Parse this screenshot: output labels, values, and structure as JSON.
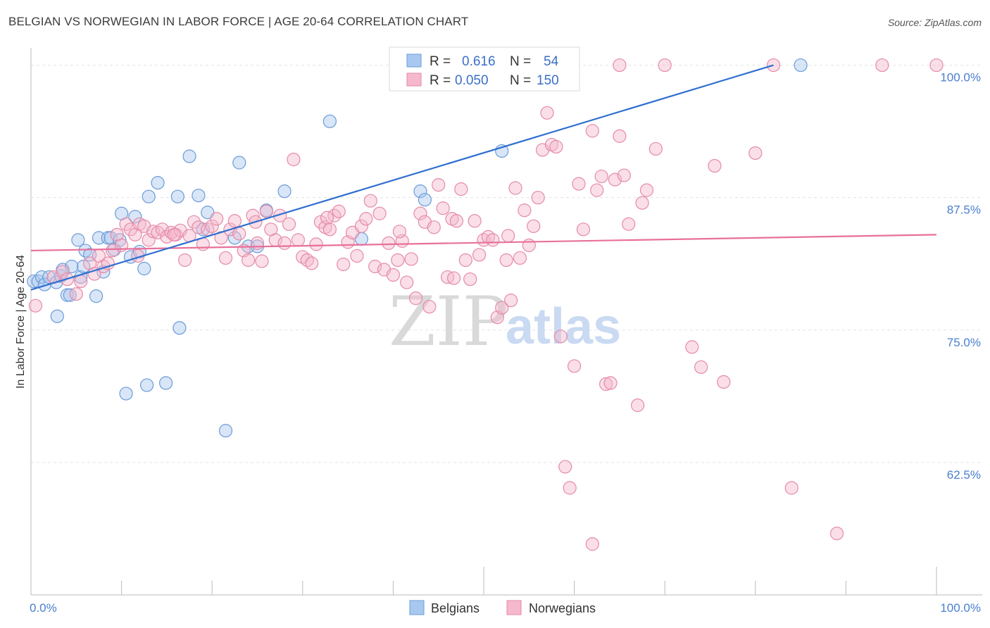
{
  "title": "BELGIAN VS NORWEGIAN IN LABOR FORCE | AGE 20-64 CORRELATION CHART",
  "source": "Source: ZipAtlas.com",
  "watermark": {
    "zip": "ZIP",
    "atlas": "atlas"
  },
  "colors": {
    "belgian_fill": "#a9c8f0",
    "belgian_stroke": "#6b9bd8",
    "belgian_line": "#2f6fd0",
    "norwegian_fill": "#f5b8cc",
    "norwegian_stroke": "#e58aa8",
    "norwegian_line": "#e8709a",
    "tick_text": "#4a7fd0",
    "grid": "#e3e3e3"
  },
  "legend": {
    "rows": [
      {
        "r_label": "R =",
        "r_value": "0.616",
        "n_label": "N =",
        "n_value": "54"
      },
      {
        "r_label": "R =",
        "r_value": "0.050",
        "n_label": "N =",
        "n_value": "150"
      }
    ]
  },
  "bottom_legend": [
    "Belgians",
    "Norwegians"
  ],
  "chart_data": {
    "type": "scatter",
    "xlabel": "",
    "ylabel": "In Labor Force | Age 20-64",
    "xlim": [
      0,
      100
    ],
    "ylim": [
      50,
      101.5
    ],
    "x_tick_labels": [
      "0.0%",
      "100.0%"
    ],
    "y_ticks": [
      62.5,
      75.0,
      87.5,
      100.0
    ],
    "y_tick_labels": [
      "62.5%",
      "75.0%",
      "87.5%",
      "100.0%"
    ],
    "grid": true,
    "legend_placement": "top-center",
    "series": [
      {
        "name": "Belgians",
        "r": 0.616,
        "n": 54,
        "trend": {
          "x": [
            0,
            82
          ],
          "y": [
            78.8,
            100.0
          ]
        },
        "points": [
          [
            0.3,
            79.6
          ],
          [
            0.8,
            79.6
          ],
          [
            1.2,
            80.0
          ],
          [
            1.5,
            79.3
          ],
          [
            2.0,
            80.0
          ],
          [
            2.8,
            79.5
          ],
          [
            3.3,
            80.1
          ],
          [
            2.9,
            76.3
          ],
          [
            3.5,
            80.7
          ],
          [
            4.0,
            78.3
          ],
          [
            4.3,
            78.3
          ],
          [
            4.5,
            81.0
          ],
          [
            5.5,
            80.0
          ],
          [
            5.8,
            81.0
          ],
          [
            5.2,
            83.5
          ],
          [
            6.0,
            82.5
          ],
          [
            6.5,
            82.1
          ],
          [
            7.2,
            78.2
          ],
          [
            7.5,
            83.7
          ],
          [
            8.0,
            80.5
          ],
          [
            8.5,
            83.7
          ],
          [
            8.8,
            83.7
          ],
          [
            9.2,
            82.6
          ],
          [
            9.8,
            83.5
          ],
          [
            10.0,
            86.0
          ],
          [
            10.5,
            69.0
          ],
          [
            11.0,
            81.9
          ],
          [
            11.5,
            85.7
          ],
          [
            12.0,
            82.4
          ],
          [
            12.5,
            80.8
          ],
          [
            12.8,
            69.8
          ],
          [
            13.0,
            87.6
          ],
          [
            14.0,
            88.9
          ],
          [
            14.9,
            70.0
          ],
          [
            16.2,
            87.6
          ],
          [
            16.4,
            75.2
          ],
          [
            17.5,
            91.4
          ],
          [
            18.5,
            87.7
          ],
          [
            19.0,
            84.5
          ],
          [
            19.5,
            86.1
          ],
          [
            21.5,
            65.5
          ],
          [
            22.5,
            83.7
          ],
          [
            23.0,
            90.8
          ],
          [
            24.0,
            82.9
          ],
          [
            25.0,
            82.9
          ],
          [
            26.0,
            86.3
          ],
          [
            28.0,
            88.1
          ],
          [
            33.0,
            94.7
          ],
          [
            36.5,
            83.6
          ],
          [
            43.0,
            88.1
          ],
          [
            43.5,
            87.3
          ],
          [
            52.0,
            91.9
          ],
          [
            49.0,
            100.0
          ],
          [
            85.0,
            100.0
          ]
        ]
      },
      {
        "name": "Norwegians",
        "r": 0.05,
        "n": 150,
        "trend": {
          "x": [
            0,
            100
          ],
          "y": [
            82.5,
            84.0
          ]
        },
        "points": [
          [
            0.5,
            77.3
          ],
          [
            2.5,
            80.0
          ],
          [
            3.5,
            80.5
          ],
          [
            4.0,
            79.8
          ],
          [
            5.0,
            78.4
          ],
          [
            5.5,
            79.6
          ],
          [
            6.5,
            81.3
          ],
          [
            7.0,
            80.3
          ],
          [
            7.5,
            82.0
          ],
          [
            8.0,
            81.0
          ],
          [
            8.5,
            81.3
          ],
          [
            9.0,
            82.5
          ],
          [
            9.5,
            84.0
          ],
          [
            10.0,
            83.0
          ],
          [
            10.5,
            85.0
          ],
          [
            11.0,
            84.5
          ],
          [
            11.5,
            84.0
          ],
          [
            12.0,
            85.0
          ],
          [
            12.5,
            84.8
          ],
          [
            13.0,
            83.5
          ],
          [
            13.5,
            84.3
          ],
          [
            14.0,
            84.2
          ],
          [
            14.5,
            84.5
          ],
          [
            15.0,
            83.8
          ],
          [
            15.5,
            84.2
          ],
          [
            16.0,
            84.0
          ],
          [
            16.5,
            84.4
          ],
          [
            17.0,
            81.6
          ],
          [
            17.5,
            83.9
          ],
          [
            18.0,
            85.2
          ],
          [
            18.5,
            84.7
          ],
          [
            19.0,
            83.1
          ],
          [
            19.5,
            84.5
          ],
          [
            20.0,
            84.8
          ],
          [
            20.5,
            85.5
          ],
          [
            21.0,
            83.7
          ],
          [
            21.5,
            81.8
          ],
          [
            22.0,
            84.5
          ],
          [
            22.5,
            85.3
          ],
          [
            23.0,
            84.1
          ],
          [
            23.5,
            82.5
          ],
          [
            24.0,
            81.6
          ],
          [
            24.5,
            85.8
          ],
          [
            25.0,
            83.2
          ],
          [
            25.5,
            81.5
          ],
          [
            26.0,
            86.2
          ],
          [
            26.5,
            84.5
          ],
          [
            27.0,
            83.5
          ],
          [
            27.5,
            85.8
          ],
          [
            28.0,
            83.2
          ],
          [
            28.5,
            85.0
          ],
          [
            29.0,
            91.1
          ],
          [
            29.5,
            83.5
          ],
          [
            30.0,
            81.9
          ],
          [
            30.5,
            81.6
          ],
          [
            31.0,
            81.3
          ],
          [
            31.5,
            83.1
          ],
          [
            32.0,
            85.2
          ],
          [
            32.5,
            84.7
          ],
          [
            33.0,
            84.5
          ],
          [
            33.5,
            85.8
          ],
          [
            34.0,
            86.2
          ],
          [
            34.5,
            81.2
          ],
          [
            35.0,
            83.3
          ],
          [
            35.5,
            84.2
          ],
          [
            36.0,
            82.0
          ],
          [
            36.5,
            84.8
          ],
          [
            37.0,
            85.5
          ],
          [
            37.5,
            87.2
          ],
          [
            38.0,
            81.0
          ],
          [
            38.5,
            86.0
          ],
          [
            39.0,
            80.7
          ],
          [
            39.5,
            83.2
          ],
          [
            40.0,
            80.2
          ],
          [
            40.5,
            81.6
          ],
          [
            41.0,
            83.4
          ],
          [
            41.5,
            79.5
          ],
          [
            42.0,
            81.7
          ],
          [
            42.5,
            78.0
          ],
          [
            43.0,
            86.0
          ],
          [
            43.5,
            85.2
          ],
          [
            44.0,
            77.2
          ],
          [
            44.5,
            84.7
          ],
          [
            45.0,
            88.7
          ],
          [
            45.5,
            86.5
          ],
          [
            46.0,
            80.0
          ],
          [
            46.5,
            85.5
          ],
          [
            47.0,
            85.3
          ],
          [
            47.5,
            88.3
          ],
          [
            48.0,
            81.6
          ],
          [
            48.5,
            79.8
          ],
          [
            49.0,
            85.3
          ],
          [
            49.5,
            82.1
          ],
          [
            50.0,
            83.5
          ],
          [
            50.5,
            83.8
          ],
          [
            51.0,
            83.5
          ],
          [
            51.5,
            76.2
          ],
          [
            52.0,
            77.1
          ],
          [
            52.5,
            81.6
          ],
          [
            53.0,
            77.8
          ],
          [
            53.5,
            88.4
          ],
          [
            54.0,
            81.8
          ],
          [
            54.5,
            86.3
          ],
          [
            55.0,
            83.0
          ],
          [
            55.5,
            84.8
          ],
          [
            56.0,
            87.5
          ],
          [
            56.5,
            92.0
          ],
          [
            57.0,
            95.5
          ],
          [
            57.5,
            92.5
          ],
          [
            58.0,
            92.3
          ],
          [
            58.5,
            74.4
          ],
          [
            60.0,
            71.6
          ],
          [
            60.5,
            88.8
          ],
          [
            61.0,
            84.5
          ],
          [
            62.0,
            93.8
          ],
          [
            62.5,
            88.2
          ],
          [
            63.0,
            89.5
          ],
          [
            63.5,
            69.9
          ],
          [
            64.0,
            70.0
          ],
          [
            64.5,
            89.2
          ],
          [
            65.0,
            93.3
          ],
          [
            65.5,
            89.6
          ],
          [
            66.0,
            85.0
          ],
          [
            67.0,
            67.9
          ],
          [
            67.5,
            87.0
          ],
          [
            68.0,
            88.2
          ],
          [
            69.0,
            92.1
          ],
          [
            65.0,
            100.0
          ],
          [
            70.0,
            100.0
          ],
          [
            73.0,
            73.4
          ],
          [
            74.0,
            71.5
          ],
          [
            75.5,
            90.5
          ],
          [
            76.5,
            70.1
          ],
          [
            80.0,
            91.7
          ],
          [
            82.0,
            100.0
          ],
          [
            84.0,
            60.1
          ],
          [
            89.0,
            55.8
          ],
          [
            94.0,
            100.0
          ],
          [
            100.0,
            100.0
          ],
          [
            59.0,
            62.1
          ],
          [
            59.5,
            60.1
          ],
          [
            62.0,
            54.8
          ],
          [
            15.8,
            84.0
          ],
          [
            11.8,
            82.0
          ],
          [
            24.8,
            85.2
          ],
          [
            32.7,
            85.6
          ],
          [
            40.7,
            84.3
          ],
          [
            46.7,
            79.9
          ],
          [
            52.7,
            83.9
          ]
        ]
      }
    ]
  }
}
